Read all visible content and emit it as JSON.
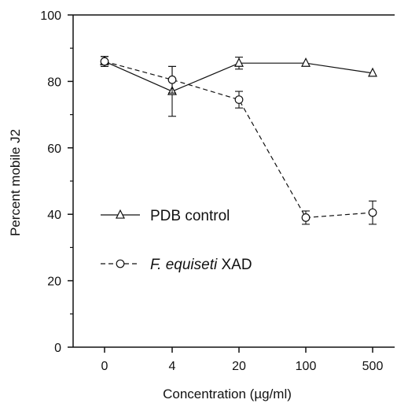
{
  "chart_data": {
    "type": "line",
    "xlabel": "Concentration (µg/ml)",
    "ylabel": "Percent mobile J2",
    "categories": [
      "0",
      "4",
      "20",
      "100",
      "500"
    ],
    "ylim": [
      0,
      100
    ],
    "yticks": [
      "0",
      "20",
      "40",
      "60",
      "80",
      "100"
    ],
    "grid": false,
    "legend_position": "center-left",
    "series": [
      {
        "name": "PDB control",
        "label_parts": [
          {
            "text": "PDB control",
            "italic": false
          }
        ],
        "marker": "triangle",
        "line_style": "solid",
        "values": [
          86,
          77,
          85.5,
          85.5,
          82.5
        ],
        "errors": [
          1.5,
          7.5,
          1.8,
          0,
          0
        ]
      },
      {
        "name": "F. equiseti XAD",
        "label_parts": [
          {
            "text": "F. equiseti",
            "italic": true
          },
          {
            "text": " XAD",
            "italic": false
          }
        ],
        "marker": "circle",
        "line_style": "dashed",
        "values": [
          86,
          80.5,
          74.5,
          39,
          40.5
        ],
        "errors": [
          1.5,
          4,
          2.5,
          2,
          3.5
        ]
      }
    ]
  }
}
